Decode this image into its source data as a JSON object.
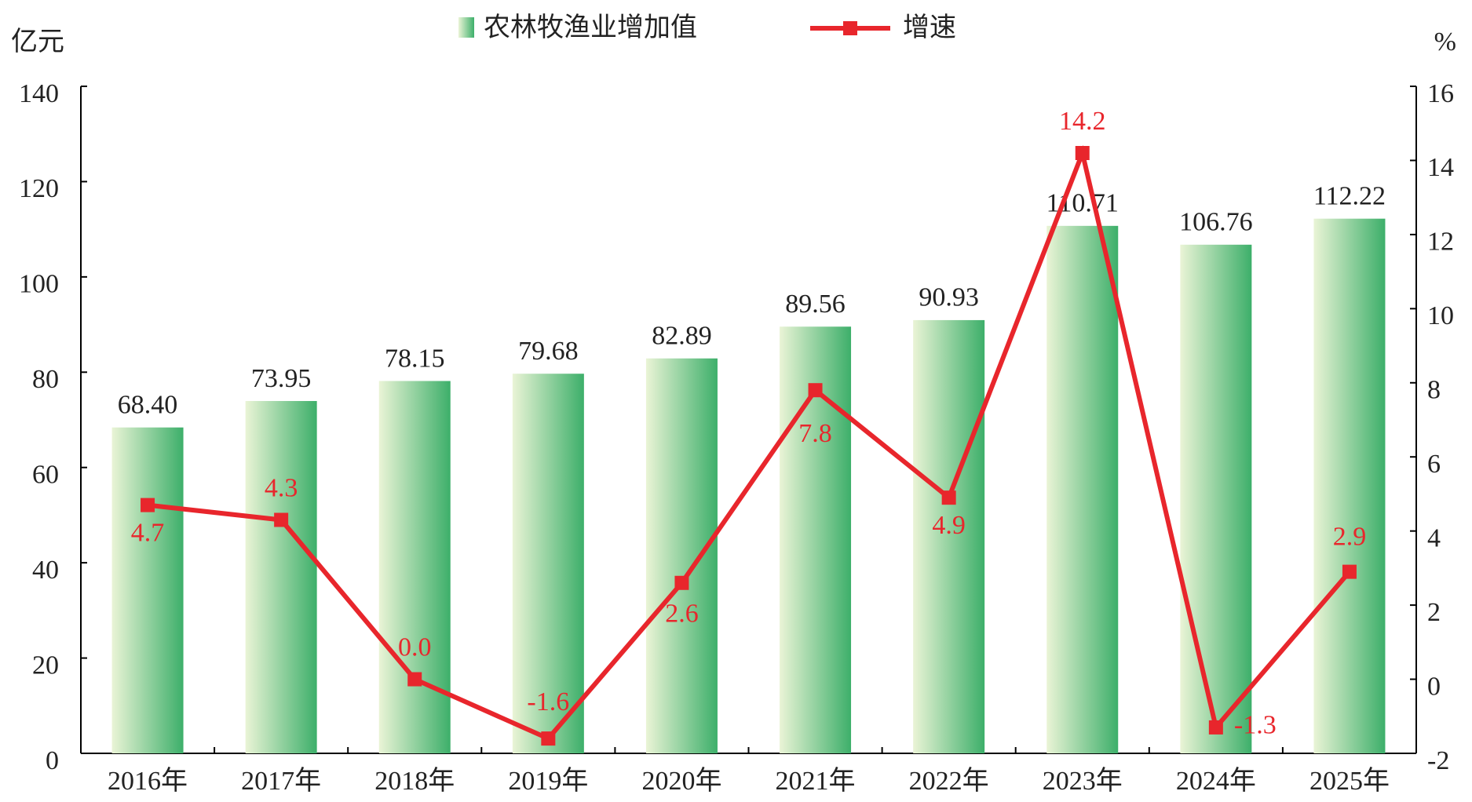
{
  "chart_data": {
    "type": "bar_line",
    "categories": [
      "2016年",
      "2017年",
      "2018年",
      "2019年",
      "2020年",
      "2021年",
      "2022年",
      "2023年",
      "2024年",
      "2025年"
    ],
    "y_label": "亿元",
    "y2_label": "%",
    "series": [
      {
        "name": "农林牧渔业增加值",
        "type": "bar",
        "color": "#3daf6a",
        "values": [
          68.4,
          73.95,
          78.15,
          79.68,
          82.89,
          89.56,
          90.93,
          110.71,
          106.76,
          112.22
        ],
        "value_labels": [
          "68.40",
          "73.95",
          "78.15",
          "79.68",
          "82.89",
          "89.56",
          "90.93",
          "110.71",
          "106.76",
          "112.22"
        ]
      },
      {
        "name": "增速",
        "type": "line",
        "axis": "y2",
        "color": "#e8262c",
        "values": [
          4.7,
          4.3,
          0.0,
          -1.6,
          2.6,
          7.8,
          4.9,
          14.2,
          -1.3,
          2.9
        ],
        "value_labels": [
          "4.7",
          "4.3",
          "0.0",
          "-1.6",
          "2.6",
          "7.8",
          "4.9",
          "14.2",
          "-1.3",
          "2.9"
        ]
      }
    ],
    "ylim": [
      0,
      140
    ],
    "yticks": [
      0,
      20,
      40,
      60,
      80,
      100,
      120,
      140
    ],
    "y2lim": [
      -2,
      16
    ],
    "y2ticks": [
      -2,
      0,
      2,
      4,
      6,
      8,
      10,
      12,
      14,
      16
    ],
    "grid": false,
    "legend": "top"
  }
}
